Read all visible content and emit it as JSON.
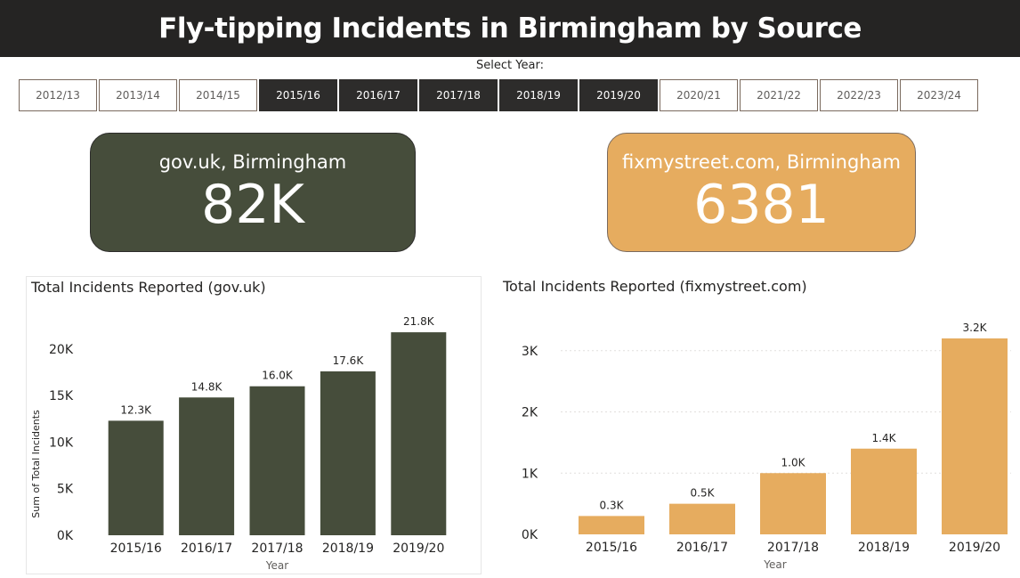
{
  "header": {
    "title": "Fly-tipping Incidents in Birmingham by Source"
  },
  "slicer": {
    "title": "Select Year:",
    "years": [
      "2012/13",
      "2013/14",
      "2014/15",
      "2015/16",
      "2016/17",
      "2017/18",
      "2018/19",
      "2019/20",
      "2020/21",
      "2021/22",
      "2022/23",
      "2023/24"
    ],
    "selected": [
      "2015/16",
      "2016/17",
      "2017/18",
      "2018/19",
      "2019/20"
    ]
  },
  "kpis": {
    "gov": {
      "label": "gov.uk, Birmingham",
      "value": "82K",
      "color": "#464d3b"
    },
    "fms": {
      "label": "fixmystreet.com, Birmingham",
      "value": "6381",
      "color": "#e6ac5f"
    }
  },
  "chart_data": [
    {
      "type": "bar",
      "title": "Total Incidents Reported (gov.uk)",
      "xlabel": "Year",
      "ylabel": "Sum of Total Incidents",
      "categories": [
        "2015/16",
        "2016/17",
        "2017/18",
        "2018/19",
        "2019/20"
      ],
      "values": [
        12300,
        14800,
        16000,
        17600,
        21800
      ],
      "data_labels": [
        "12.3K",
        "14.8K",
        "16.0K",
        "17.6K",
        "21.8K"
      ],
      "yticks": [
        0,
        5000,
        10000,
        15000,
        20000
      ],
      "ytick_labels": [
        "0K",
        "5K",
        "10K",
        "15K",
        "20K"
      ],
      "ylim": [
        0,
        22000
      ],
      "color": "#464d3b",
      "grid": false
    },
    {
      "type": "bar",
      "title": "Total Incidents Reported (fixmystreet.com)",
      "xlabel": "Year",
      "ylabel": "",
      "categories": [
        "2015/16",
        "2016/17",
        "2017/18",
        "2018/19",
        "2019/20"
      ],
      "values": [
        300,
        500,
        1000,
        1400,
        3200
      ],
      "data_labels": [
        "0.3K",
        "0.5K",
        "1.0K",
        "1.4K",
        "3.2K"
      ],
      "yticks": [
        0,
        1000,
        2000,
        3000
      ],
      "ytick_labels": [
        "0K",
        "1K",
        "2K",
        "3K"
      ],
      "ylim": [
        0,
        3200
      ],
      "color": "#e6ac5f",
      "grid": true
    }
  ]
}
